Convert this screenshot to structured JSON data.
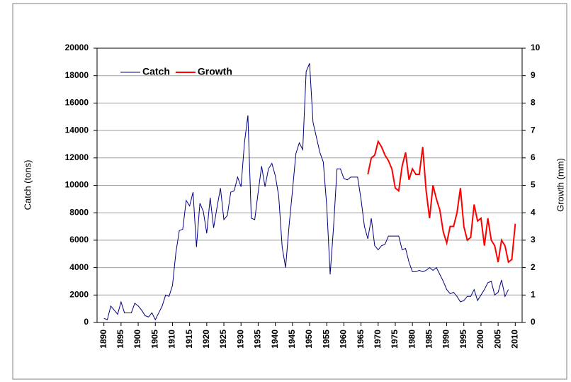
{
  "chart_data": {
    "type": "line",
    "y_label": "Catch (tons)",
    "y2_label": "Growth (mm)",
    "xlim": [
      1888,
      2012
    ],
    "xticks": [
      1890,
      1895,
      1900,
      1905,
      1910,
      1915,
      1920,
      1925,
      1930,
      1935,
      1940,
      1945,
      1950,
      1955,
      1960,
      1965,
      1970,
      1975,
      1980,
      1985,
      1990,
      1995,
      2000,
      2005,
      2010
    ],
    "ylim": [
      0,
      20000
    ],
    "yticks": [
      0,
      2000,
      4000,
      6000,
      8000,
      10000,
      12000,
      14000,
      16000,
      18000,
      20000
    ],
    "y2lim": [
      0,
      10
    ],
    "y2ticks": [
      0,
      1,
      2,
      3,
      4,
      5,
      6,
      7,
      8,
      9,
      10
    ],
    "grid": true,
    "legend": "upper left",
    "series": [
      {
        "name": "Catch",
        "color": "#000080",
        "x": [
          1890,
          1891,
          1892,
          1893,
          1894,
          1895,
          1896,
          1897,
          1898,
          1899,
          1900,
          1901,
          1902,
          1903,
          1904,
          1905,
          1906,
          1907,
          1908,
          1909,
          1910,
          1911,
          1912,
          1913,
          1914,
          1915,
          1916,
          1917,
          1918,
          1919,
          1920,
          1921,
          1922,
          1923,
          1924,
          1925,
          1926,
          1927,
          1928,
          1929,
          1930,
          1931,
          1932,
          1933,
          1934,
          1935,
          1936,
          1937,
          1938,
          1939,
          1940,
          1941,
          1942,
          1943,
          1944,
          1945,
          1946,
          1947,
          1948,
          1949,
          1950,
          1951,
          1952,
          1953,
          1954,
          1955,
          1956,
          1957,
          1958,
          1959,
          1960,
          1961,
          1962,
          1963,
          1964,
          1965,
          1966,
          1967,
          1968,
          1969,
          1970,
          1971,
          1972,
          1973,
          1974,
          1975,
          1976,
          1977,
          1978,
          1979,
          1980,
          1981,
          1982,
          1983,
          1984,
          1985,
          1986,
          1987,
          1988,
          1989,
          1990,
          1991,
          1992,
          1993,
          1994,
          1995,
          1996,
          1997,
          1998,
          1999,
          2000,
          2001,
          2002,
          2003,
          2004,
          2005,
          2006,
          2007,
          2008
        ],
        "values": [
          300,
          200,
          1200,
          900,
          600,
          1500,
          700,
          700,
          700,
          1400,
          1200,
          900,
          500,
          400,
          700,
          200,
          700,
          1200,
          2000,
          1900,
          2700,
          5100,
          6700,
          6800,
          8900,
          8500,
          9500,
          5500,
          8700,
          8100,
          6500,
          9100,
          6900,
          8400,
          9800,
          7500,
          7800,
          9500,
          9600,
          10600,
          9900,
          13100,
          15100,
          7600,
          7500,
          9500,
          11400,
          9900,
          11200,
          11600,
          10700,
          9200,
          5500,
          4000,
          7000,
          9600,
          12300,
          13100,
          12600,
          18300,
          18900,
          14600,
          13500,
          12400,
          11700,
          8500,
          3500,
          7000,
          11200,
          11200,
          10500,
          10400,
          10600,
          10600,
          10600,
          9000,
          7000,
          6100,
          7600,
          5600,
          5300,
          5600,
          5700,
          6300,
          6300,
          6300,
          6300,
          5300,
          5400,
          4400,
          3700,
          3700,
          3800,
          3700,
          3800,
          4000,
          3800,
          4000,
          3500,
          3000,
          2400,
          2100,
          2200,
          1900,
          1500,
          1600,
          1900,
          1900,
          2400,
          1600,
          2000,
          2400,
          2900,
          3000,
          2000,
          2200,
          3100,
          1900,
          2400
        ]
      },
      {
        "name": "Growth",
        "color": "#ff0000",
        "axis": "y2",
        "x": [
          1967,
          1968,
          1969,
          1970,
          1971,
          1972,
          1973,
          1974,
          1975,
          1976,
          1977,
          1978,
          1979,
          1980,
          1981,
          1982,
          1983,
          1984,
          1985,
          1986,
          1987,
          1988,
          1989,
          1990,
          1991,
          1992,
          1993,
          1994,
          1995,
          1996,
          1997,
          1998,
          1999,
          2000,
          2001,
          2002,
          2003,
          2004,
          2005,
          2006,
          2007,
          2008,
          2009,
          2010
        ],
        "values": [
          5.4,
          6.0,
          6.1,
          6.6,
          6.4,
          6.1,
          5.9,
          5.6,
          4.9,
          4.8,
          5.7,
          6.2,
          5.2,
          5.6,
          5.4,
          5.4,
          6.4,
          4.8,
          3.8,
          5.0,
          4.5,
          4.1,
          3.3,
          2.9,
          3.5,
          3.5,
          4.0,
          4.9,
          3.5,
          3.0,
          3.1,
          4.3,
          3.7,
          3.8,
          2.8,
          3.8,
          3.0,
          2.8,
          2.2,
          3.0,
          2.8,
          2.2,
          2.3,
          3.6
        ]
      }
    ]
  }
}
